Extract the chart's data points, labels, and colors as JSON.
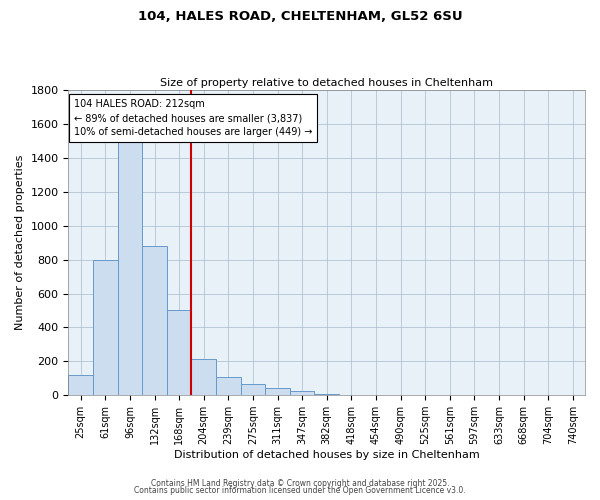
{
  "title": "104, HALES ROAD, CHELTENHAM, GL52 6SU",
  "subtitle": "Size of property relative to detached houses in Cheltenham",
  "xlabel": "Distribution of detached houses by size in Cheltenham",
  "ylabel": "Number of detached properties",
  "bar_labels": [
    "25sqm",
    "61sqm",
    "96sqm",
    "132sqm",
    "168sqm",
    "204sqm",
    "239sqm",
    "275sqm",
    "311sqm",
    "347sqm",
    "382sqm",
    "418sqm",
    "454sqm",
    "490sqm",
    "525sqm",
    "561sqm",
    "597sqm",
    "633sqm",
    "668sqm",
    "704sqm",
    "740sqm"
  ],
  "bar_values": [
    120,
    800,
    1500,
    880,
    500,
    215,
    105,
    65,
    45,
    25,
    10,
    0,
    0,
    0,
    0,
    0,
    0,
    0,
    0,
    0,
    0
  ],
  "bar_color": "#ccddef",
  "bar_edge_color": "#6699cc",
  "ylim": [
    0,
    1800
  ],
  "yticks": [
    0,
    200,
    400,
    600,
    800,
    1000,
    1200,
    1400,
    1600,
    1800
  ],
  "vline_index": 5,
  "vline_color": "#cc0000",
  "annotation_title": "104 HALES ROAD: 212sqm",
  "annotation_line1": "← 89% of detached houses are smaller (3,837)",
  "annotation_line2": "10% of semi-detached houses are larger (449) →",
  "footer1": "Contains HM Land Registry data © Crown copyright and database right 2025.",
  "footer2": "Contains public sector information licensed under the Open Government Licence v3.0.",
  "background_color": "#ffffff",
  "plot_bg_color": "#e8f0f8"
}
